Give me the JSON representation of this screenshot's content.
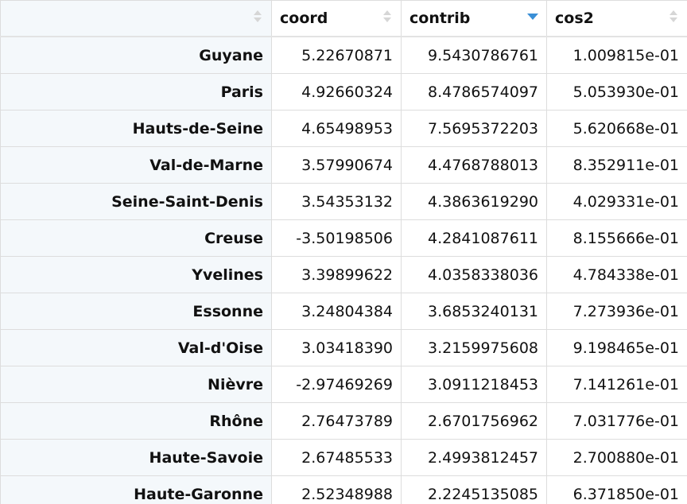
{
  "columns": [
    {
      "label": "",
      "sort": "none"
    },
    {
      "label": "coord",
      "sort": "none"
    },
    {
      "label": "contrib",
      "sort": "desc"
    },
    {
      "label": "cos2",
      "sort": "none"
    }
  ],
  "rows": [
    {
      "name": "Guyane",
      "coord": "5.22670871",
      "contrib": "9.5430786761",
      "cos2": "1.009815e-01"
    },
    {
      "name": "Paris",
      "coord": "4.92660324",
      "contrib": "8.4786574097",
      "cos2": "5.053930e-01"
    },
    {
      "name": "Hauts-de-Seine",
      "coord": "4.65498953",
      "contrib": "7.5695372203",
      "cos2": "5.620668e-01"
    },
    {
      "name": "Val-de-Marne",
      "coord": "3.57990674",
      "contrib": "4.4768788013",
      "cos2": "8.352911e-01"
    },
    {
      "name": "Seine-Saint-Denis",
      "coord": "3.54353132",
      "contrib": "4.3863619290",
      "cos2": "4.029331e-01"
    },
    {
      "name": "Creuse",
      "coord": "-3.50198506",
      "contrib": "4.2841087611",
      "cos2": "8.155666e-01"
    },
    {
      "name": "Yvelines",
      "coord": "3.39899622",
      "contrib": "4.0358338036",
      "cos2": "4.784338e-01"
    },
    {
      "name": "Essonne",
      "coord": "3.24804384",
      "contrib": "3.6853240131",
      "cos2": "7.273936e-01"
    },
    {
      "name": "Val-d'Oise",
      "coord": "3.03418390",
      "contrib": "3.2159975608",
      "cos2": "9.198465e-01"
    },
    {
      "name": "Nièvre",
      "coord": "-2.97469269",
      "contrib": "3.0911218453",
      "cos2": "7.141261e-01"
    },
    {
      "name": "Rhône",
      "coord": "2.76473789",
      "contrib": "2.6701756962",
      "cos2": "7.031776e-01"
    },
    {
      "name": "Haute-Savoie",
      "coord": "2.67485533",
      "contrib": "2.4993812457",
      "cos2": "2.700880e-01"
    },
    {
      "name": "Haute-Garonne",
      "coord": "2.52348988",
      "contrib": "2.2245135085",
      "cos2": "6.371850e-01"
    }
  ],
  "colors": {
    "sort_active": "#3a8fd6",
    "sort_inactive": "#d6d6d6",
    "rowname_bg": "#f4f8fb",
    "border": "#dddddd"
  }
}
